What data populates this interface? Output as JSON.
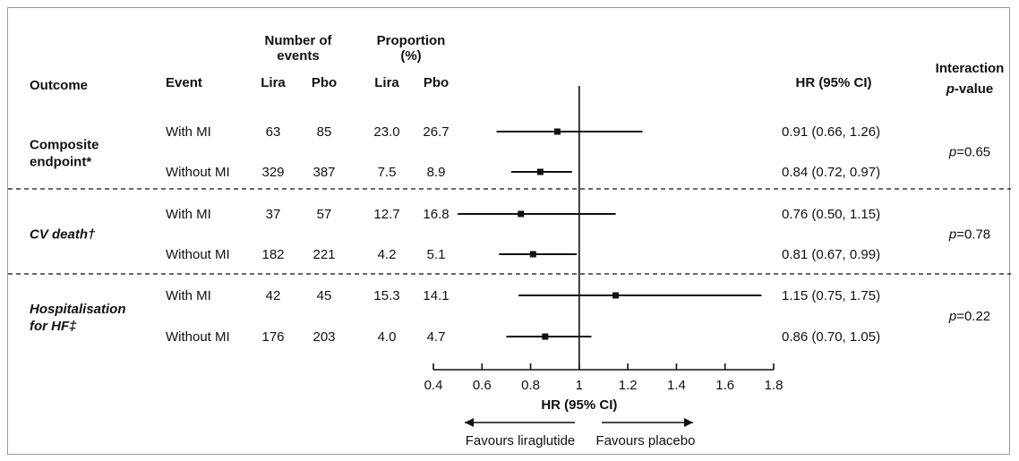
{
  "chart_data": {
    "type": "forest",
    "headers": {
      "outcome": "Outcome",
      "event": "Event",
      "events_group": [
        "Number of",
        "events"
      ],
      "prop_group": [
        "Proportion",
        "(%)"
      ],
      "lira": "Lira",
      "pbo": "Pbo",
      "hr": "HR (95% CI)",
      "interaction": [
        "Interaction",
        "p",
        "-value"
      ]
    },
    "groups": [
      {
        "outcome_lines": [
          "Composite",
          "endpoint*"
        ],
        "italic": false,
        "interaction": "p=0.65",
        "rows": [
          {
            "event": "With MI",
            "events_lira": "63",
            "events_pbo": "85",
            "prop_lira": "23.0",
            "prop_pbo": "26.7",
            "hr": 0.91,
            "lo": 0.66,
            "hi": 1.26,
            "hr_text": "0.91 (0.66, 1.26)"
          },
          {
            "event": "Without MI",
            "events_lira": "329",
            "events_pbo": "387",
            "prop_lira": "7.5",
            "prop_pbo": "8.9",
            "hr": 0.84,
            "lo": 0.72,
            "hi": 0.97,
            "hr_text": "0.84 (0.72, 0.97)"
          }
        ]
      },
      {
        "outcome_lines": [
          "CV death†"
        ],
        "italic": true,
        "interaction": "p=0.78",
        "rows": [
          {
            "event": "With MI",
            "events_lira": "37",
            "events_pbo": "57",
            "prop_lira": "12.7",
            "prop_pbo": "16.8",
            "hr": 0.76,
            "lo": 0.5,
            "hi": 1.15,
            "hr_text": "0.76 (0.50, 1.15)"
          },
          {
            "event": "Without MI",
            "events_lira": "182",
            "events_pbo": "221",
            "prop_lira": "4.2",
            "prop_pbo": "5.1",
            "hr": 0.81,
            "lo": 0.67,
            "hi": 0.99,
            "hr_text": "0.81 (0.67, 0.99)"
          }
        ]
      },
      {
        "outcome_lines": [
          "Hospitalisation",
          "for HF‡"
        ],
        "italic": true,
        "interaction": "p=0.22",
        "rows": [
          {
            "event": "With MI",
            "events_lira": "42",
            "events_pbo": "45",
            "prop_lira": "15.3",
            "prop_pbo": "14.1",
            "hr": 1.15,
            "lo": 0.75,
            "hi": 1.75,
            "hr_text": "1.15 (0.75, 1.75)"
          },
          {
            "event": "Without MI",
            "events_lira": "176",
            "events_pbo": "203",
            "prop_lira": "4.0",
            "prop_pbo": "4.7",
            "hr": 0.86,
            "lo": 0.7,
            "hi": 1.05,
            "hr_text": "0.86 (0.70, 1.05)"
          }
        ]
      }
    ],
    "x_axis": {
      "min": 0.4,
      "max": 1.8,
      "reference": 1,
      "ticks": [
        "0.4",
        "0.6",
        "0.8",
        "1",
        "1.2",
        "1.4",
        "1.6",
        "1.8"
      ],
      "label": "HR (95% CI)"
    },
    "favours_left": "Favours liraglutide",
    "favours_right": "Favours placebo"
  }
}
